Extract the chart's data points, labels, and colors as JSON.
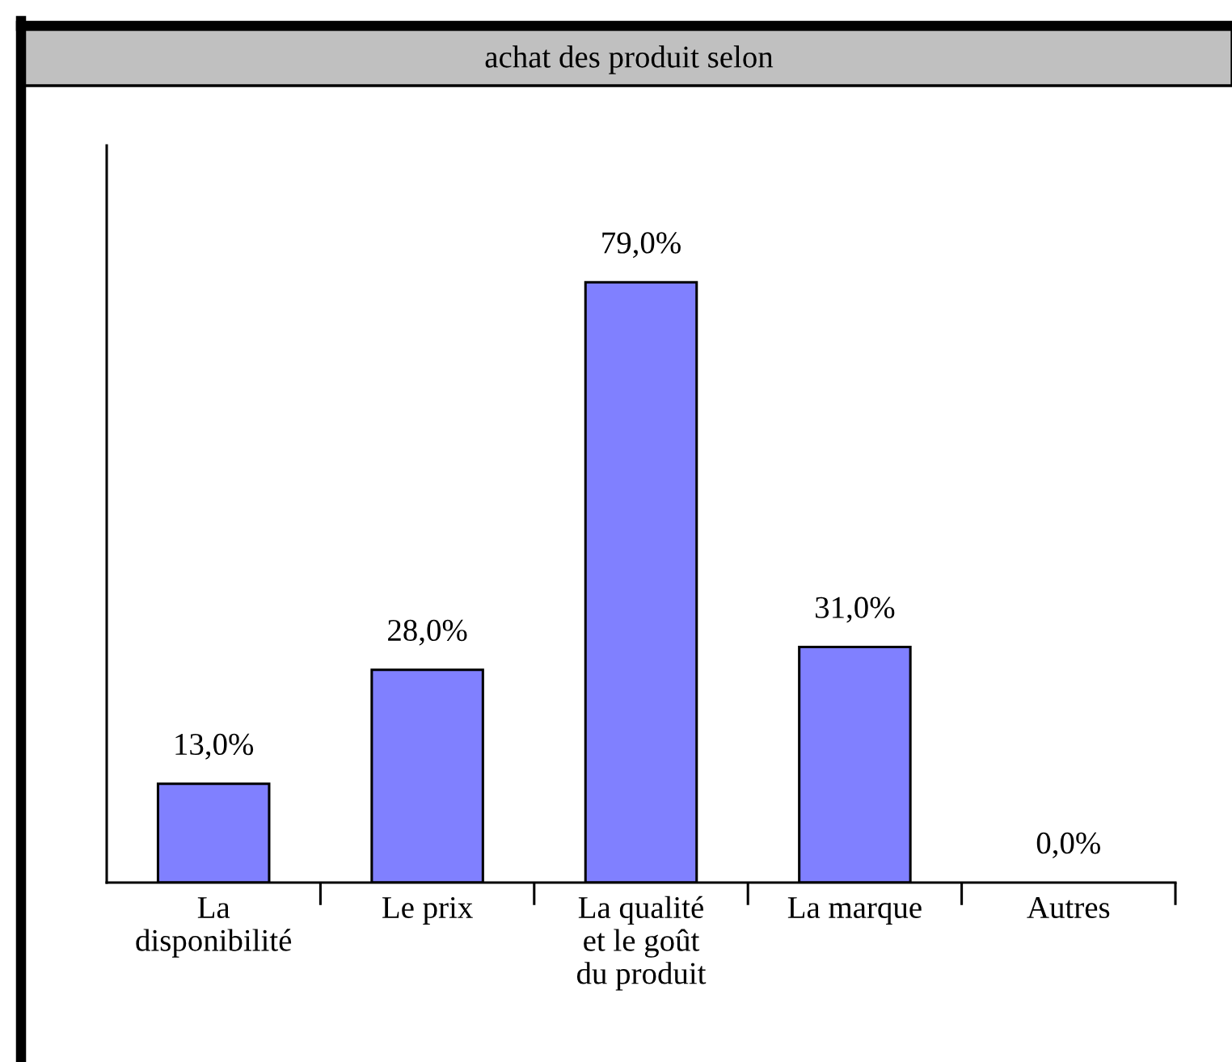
{
  "chart_data": {
    "type": "bar",
    "title": "achat des produit selon",
    "categories": [
      "La disponibilité",
      "Le prix",
      "La qualité et le goût du produit",
      "La marque",
      "Autres"
    ],
    "values": [
      13,
      28,
      79,
      31,
      0
    ],
    "color": "#8080ff",
    "value_labels": [
      "13,0%",
      "28,0%",
      "79,0%",
      "31,0%",
      "0,0%"
    ],
    "ylim": [
      0,
      97
    ],
    "tick_labels": "x"
  }
}
